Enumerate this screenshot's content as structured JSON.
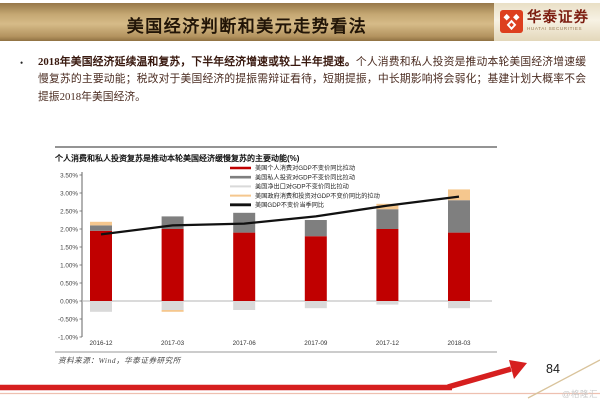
{
  "header": {
    "title": "美国经济判断和美元走势看法",
    "brand": {
      "name": "华泰证券",
      "subtitle": "HUATAI SECURITIES",
      "logo_color": "#dd3f1e",
      "name_color": "#7c1d10"
    }
  },
  "bullet": {
    "marker": "•",
    "bold": "2018年美国经济延续温和复苏，下半年经济增速或较上半年提速。",
    "rest": "个人消费和私人投资是推动本轮美国经济增速缓慢复苏的主要动能；税改对于美国经济的提振需辩证看待，短期提振，中长期影响将会弱化；基建计划大概率不会提振2018年美国经济。"
  },
  "chart_data": {
    "type": "bar",
    "subtype": "stacked-bar-with-line",
    "title": "个人消费和私人投资复苏是推动本轮美国经济缓慢复苏的主要动能(%)",
    "categories": [
      "2016-12",
      "2017-03",
      "2017-06",
      "2017-09",
      "2017-12",
      "2018-03"
    ],
    "series": [
      {
        "name": "美国个人消费对GDP不变价同比拉动",
        "type": "bar",
        "color": "#c00000",
        "values": [
          1.95,
          2.0,
          1.9,
          1.8,
          2.0,
          1.9
        ]
      },
      {
        "name": "美国私人投资对GDP不变价同比拉动",
        "type": "bar",
        "color": "#7f7f7f",
        "values": [
          0.15,
          0.35,
          0.55,
          0.45,
          0.55,
          0.9
        ]
      },
      {
        "name": "美国净出口对GDP不变价同比拉动",
        "type": "bar",
        "color": "#d9d9d9",
        "values": [
          -0.3,
          -0.25,
          -0.25,
          -0.2,
          -0.1,
          -0.2
        ]
      },
      {
        "name": "美国政府消费和投资对GDP不变价同比的拉动",
        "type": "bar",
        "color": "#f5c78e",
        "values": [
          0.1,
          -0.05,
          0.0,
          0.0,
          0.15,
          0.3
        ]
      },
      {
        "name": "美国GDP不变价当季同比",
        "type": "line",
        "color": "#111111",
        "values": [
          1.85,
          2.1,
          2.15,
          2.35,
          2.65,
          2.9
        ]
      }
    ],
    "ylim": [
      -1.0,
      3.5
    ],
    "ytick_step": 0.5,
    "ytick_format": "0.00%",
    "grid": false,
    "legend_position": "inside-top-center",
    "zero_line": true
  },
  "source_note": "资料来源：Wind，华泰证券研究所",
  "footer": {
    "page_number": "84",
    "watermark": "@格隆汇",
    "arrow_color": "#d61f1f"
  }
}
